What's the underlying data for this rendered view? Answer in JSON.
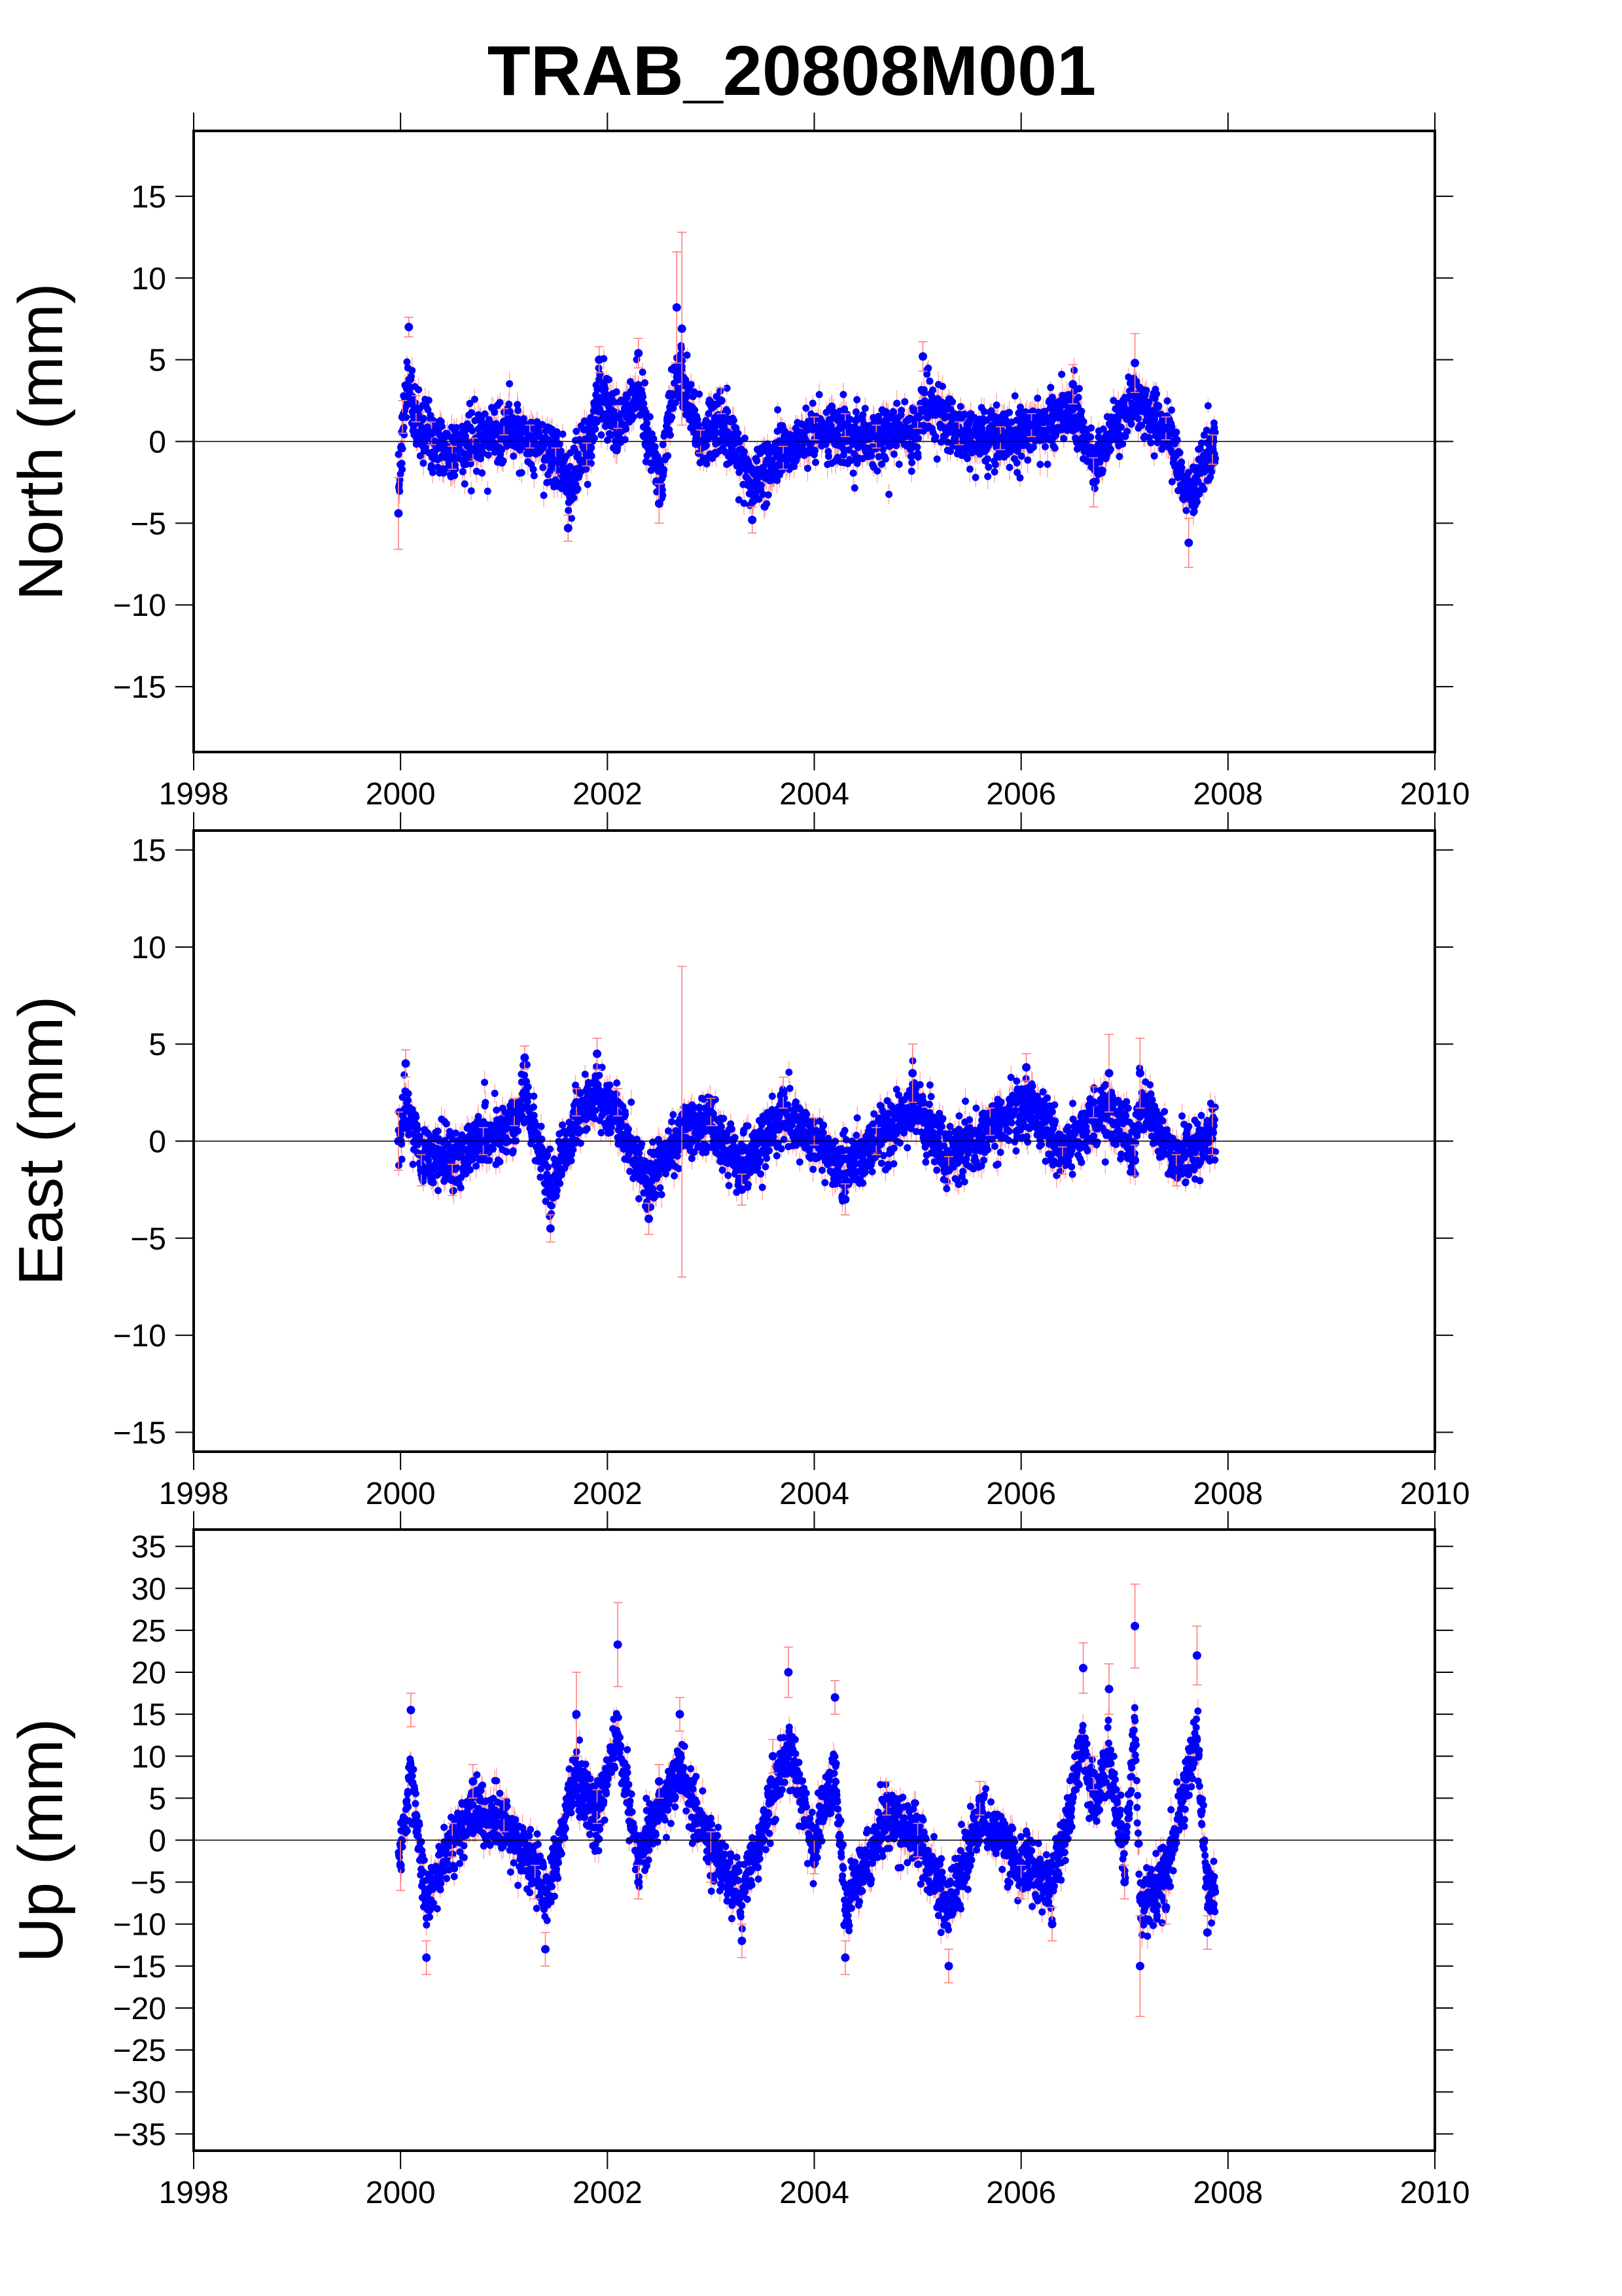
{
  "figure": {
    "title": "TRAB_20808M001"
  },
  "chart_data": [
    {
      "type": "scatter",
      "ylabel": "North (mm)",
      "xlabel": "",
      "xlim": [
        1998,
        2010
      ],
      "ylim": [
        -19,
        19
      ],
      "xticks": [
        1998,
        2000,
        2002,
        2004,
        2006,
        2008,
        2010
      ],
      "yticks": [
        -15,
        -10,
        -5,
        0,
        5,
        10,
        15
      ],
      "grid": false,
      "zero_line": true,
      "point_color": "#0000ff",
      "errorbar_color": "#ff8080",
      "data_span": [
        1999.98,
        2007.88
      ],
      "series": [
        {
          "values": [
            {
              "x": 1999.98,
              "y": -4.4,
              "err": 2.2
            },
            {
              "x": 2000.02,
              "y": 1.5,
              "err": 1.0
            },
            {
              "x": 2000.08,
              "y": 7.0,
              "err": 0.6
            },
            {
              "x": 2000.15,
              "y": 2.0,
              "err": 0.8
            },
            {
              "x": 2000.3,
              "y": 0.5,
              "err": 0.7
            },
            {
              "x": 2000.5,
              "y": -1.0,
              "err": 0.7
            },
            {
              "x": 2000.7,
              "y": -0.5,
              "err": 0.7
            },
            {
              "x": 2001.0,
              "y": 1.2,
              "err": 0.8
            },
            {
              "x": 2001.25,
              "y": 0.3,
              "err": 0.7
            },
            {
              "x": 2001.5,
              "y": -1.2,
              "err": 0.8
            },
            {
              "x": 2001.62,
              "y": -5.3,
              "err": 0.8
            },
            {
              "x": 2001.8,
              "y": -0.8,
              "err": 0.7
            },
            {
              "x": 2001.92,
              "y": 5.0,
              "err": 0.8
            },
            {
              "x": 2002.1,
              "y": 1.5,
              "err": 0.7
            },
            {
              "x": 2002.3,
              "y": 5.4,
              "err": 0.9
            },
            {
              "x": 2002.5,
              "y": -3.8,
              "err": 1.2
            },
            {
              "x": 2002.67,
              "y": 8.2,
              "err": 3.4
            },
            {
              "x": 2002.72,
              "y": 6.9,
              "err": 5.9
            },
            {
              "x": 2002.9,
              "y": 0.0,
              "err": 0.7
            },
            {
              "x": 2003.1,
              "y": 2.5,
              "err": 0.8
            },
            {
              "x": 2003.4,
              "y": -4.8,
              "err": 0.8
            },
            {
              "x": 2003.7,
              "y": -1.0,
              "err": 0.7
            },
            {
              "x": 2004.0,
              "y": 0.8,
              "err": 0.7
            },
            {
              "x": 2004.3,
              "y": 1.0,
              "err": 0.7
            },
            {
              "x": 2004.6,
              "y": 0.3,
              "err": 0.7
            },
            {
              "x": 2005.0,
              "y": 1.5,
              "err": 0.7
            },
            {
              "x": 2005.05,
              "y": 5.2,
              "err": 0.9
            },
            {
              "x": 2005.4,
              "y": 0.5,
              "err": 0.7
            },
            {
              "x": 2005.8,
              "y": 0.2,
              "err": 0.7
            },
            {
              "x": 2006.1,
              "y": 1.0,
              "err": 0.7
            },
            {
              "x": 2006.5,
              "y": 3.5,
              "err": 1.2
            },
            {
              "x": 2006.7,
              "y": -2.5,
              "err": 1.5
            },
            {
              "x": 2007.1,
              "y": 4.8,
              "err": 1.8
            },
            {
              "x": 2007.4,
              "y": 0.8,
              "err": 0.7
            },
            {
              "x": 2007.62,
              "y": -6.2,
              "err": 1.5
            },
            {
              "x": 2007.85,
              "y": -0.5,
              "err": 0.9
            }
          ]
        }
      ]
    },
    {
      "type": "scatter",
      "ylabel": "East (mm)",
      "xlabel": "",
      "xlim": [
        1998,
        2010
      ],
      "ylim": [
        -16,
        16
      ],
      "xticks": [
        1998,
        2000,
        2002,
        2004,
        2006,
        2008,
        2010
      ],
      "yticks": [
        -15,
        -10,
        -5,
        0,
        5,
        10,
        15
      ],
      "grid": false,
      "zero_line": true,
      "point_color": "#0000ff",
      "errorbar_color": "#ff8080",
      "data_span": [
        1999.98,
        2007.88
      ],
      "series": [
        {
          "values": [
            {
              "x": 1999.98,
              "y": 0.0,
              "err": 1.5
            },
            {
              "x": 2000.05,
              "y": 4.0,
              "err": 0.7
            },
            {
              "x": 2000.2,
              "y": -1.5,
              "err": 0.8
            },
            {
              "x": 2000.5,
              "y": -2.0,
              "err": 0.8
            },
            {
              "x": 2000.8,
              "y": 0.0,
              "err": 0.7
            },
            {
              "x": 2001.1,
              "y": 1.5,
              "err": 0.7
            },
            {
              "x": 2001.2,
              "y": 4.3,
              "err": 0.6
            },
            {
              "x": 2001.45,
              "y": -4.5,
              "err": 0.7
            },
            {
              "x": 2001.7,
              "y": 2.0,
              "err": 0.7
            },
            {
              "x": 2001.9,
              "y": 4.5,
              "err": 0.8
            },
            {
              "x": 2002.1,
              "y": 2.0,
              "err": 0.7
            },
            {
              "x": 2002.4,
              "y": -4.0,
              "err": 0.8
            },
            {
              "x": 2002.72,
              "y": 1.0,
              "err": 8.0
            },
            {
              "x": 2003.0,
              "y": 1.5,
              "err": 0.7
            },
            {
              "x": 2003.3,
              "y": -2.5,
              "err": 0.8
            },
            {
              "x": 2003.7,
              "y": 2.5,
              "err": 0.8
            },
            {
              "x": 2004.0,
              "y": 0.5,
              "err": 0.7
            },
            {
              "x": 2004.3,
              "y": -3.0,
              "err": 0.8
            },
            {
              "x": 2004.6,
              "y": 0.0,
              "err": 0.7
            },
            {
              "x": 2004.95,
              "y": 3.5,
              "err": 1.5
            },
            {
              "x": 2005.3,
              "y": -1.5,
              "err": 0.7
            },
            {
              "x": 2005.7,
              "y": 1.0,
              "err": 0.7
            },
            {
              "x": 2006.05,
              "y": 3.8,
              "err": 0.7
            },
            {
              "x": 2006.4,
              "y": -1.0,
              "err": 0.7
            },
            {
              "x": 2006.7,
              "y": 2.0,
              "err": 0.8
            },
            {
              "x": 2006.85,
              "y": 3.5,
              "err": 2.0
            },
            {
              "x": 2007.1,
              "y": -1.0,
              "err": 0.8
            },
            {
              "x": 2007.15,
              "y": 3.5,
              "err": 1.8
            },
            {
              "x": 2007.5,
              "y": -1.5,
              "err": 0.8
            },
            {
              "x": 2007.85,
              "y": 0.5,
              "err": 1.2
            }
          ]
        }
      ]
    },
    {
      "type": "scatter",
      "ylabel": "Up (mm)",
      "xlabel": "",
      "xlim": [
        1998,
        2010
      ],
      "ylim": [
        -37,
        37
      ],
      "xticks": [
        1998,
        2000,
        2002,
        2004,
        2006,
        2008,
        2010
      ],
      "yticks": [
        -35,
        -30,
        -25,
        -20,
        -15,
        -10,
        -5,
        0,
        5,
        10,
        15,
        20,
        25,
        30,
        35
      ],
      "grid": false,
      "zero_line": true,
      "point_color": "#0000ff",
      "errorbar_color": "#ff8080",
      "data_span": [
        1999.98,
        2007.88
      ],
      "series": [
        {
          "values": [
            {
              "x": 2000.0,
              "y": -3.0,
              "err": 3.0
            },
            {
              "x": 2000.1,
              "y": 15.5,
              "err": 2.0
            },
            {
              "x": 2000.25,
              "y": -14.0,
              "err": 2.0
            },
            {
              "x": 2000.5,
              "y": 0.0,
              "err": 2.0
            },
            {
              "x": 2000.7,
              "y": 7.0,
              "err": 2.0
            },
            {
              "x": 2001.0,
              "y": 3.0,
              "err": 2.0
            },
            {
              "x": 2001.3,
              "y": -5.0,
              "err": 2.0
            },
            {
              "x": 2001.4,
              "y": -13.0,
              "err": 2.0
            },
            {
              "x": 2001.7,
              "y": 15.0,
              "err": 5.0
            },
            {
              "x": 2001.9,
              "y": 4.0,
              "err": 2.0
            },
            {
              "x": 2002.1,
              "y": 23.3,
              "err": 5.0
            },
            {
              "x": 2002.3,
              "y": -5.0,
              "err": 2.0
            },
            {
              "x": 2002.5,
              "y": 7.0,
              "err": 2.0
            },
            {
              "x": 2002.7,
              "y": 15.0,
              "err": 2.0
            },
            {
              "x": 2003.0,
              "y": -2.0,
              "err": 3.0
            },
            {
              "x": 2003.3,
              "y": -12.0,
              "err": 2.0
            },
            {
              "x": 2003.6,
              "y": 10.0,
              "err": 2.0
            },
            {
              "x": 2003.75,
              "y": 20.0,
              "err": 3.0
            },
            {
              "x": 2004.0,
              "y": -2.0,
              "err": 2.0
            },
            {
              "x": 2004.2,
              "y": 17.0,
              "err": 2.0
            },
            {
              "x": 2004.3,
              "y": -14.0,
              "err": 2.0
            },
            {
              "x": 2004.7,
              "y": 5.0,
              "err": 2.0
            },
            {
              "x": 2005.0,
              "y": 0.0,
              "err": 2.0
            },
            {
              "x": 2005.3,
              "y": -15.0,
              "err": 2.0
            },
            {
              "x": 2005.6,
              "y": 5.0,
              "err": 2.0
            },
            {
              "x": 2006.0,
              "y": -5.0,
              "err": 2.0
            },
            {
              "x": 2006.3,
              "y": -10.0,
              "err": 2.0
            },
            {
              "x": 2006.6,
              "y": 20.5,
              "err": 3.0
            },
            {
              "x": 2006.7,
              "y": 8.0,
              "err": 2.0
            },
            {
              "x": 2006.85,
              "y": 18.0,
              "err": 3.0
            },
            {
              "x": 2007.0,
              "y": -5.0,
              "err": 2.0
            },
            {
              "x": 2007.1,
              "y": 25.5,
              "err": 5.0
            },
            {
              "x": 2007.15,
              "y": -15.0,
              "err": 6.0
            },
            {
              "x": 2007.4,
              "y": -8.0,
              "err": 2.0
            },
            {
              "x": 2007.7,
              "y": 22.0,
              "err": 3.5
            },
            {
              "x": 2007.8,
              "y": -11.0,
              "err": 2.0
            }
          ]
        }
      ]
    }
  ]
}
